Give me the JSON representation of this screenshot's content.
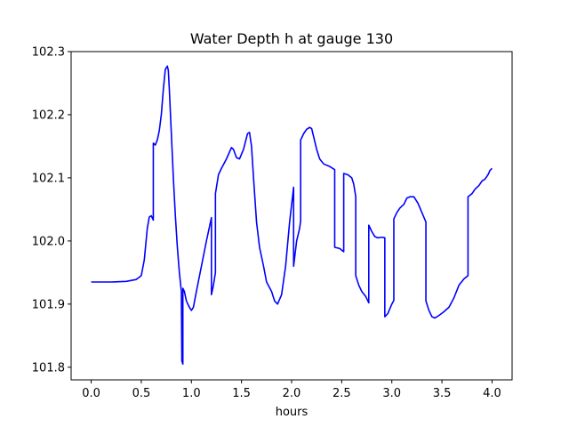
{
  "chart_data": {
    "type": "line",
    "title": "Water Depth h at gauge 130",
    "xlabel": "hours",
    "ylabel": "",
    "xlim": [
      -0.2,
      4.2
    ],
    "ylim": [
      101.78,
      102.3
    ],
    "xticks": [
      0.0,
      0.5,
      1.0,
      1.5,
      2.0,
      2.5,
      3.0,
      3.5,
      4.0
    ],
    "xtick_labels": [
      "0.0",
      "0.5",
      "1.0",
      "1.5",
      "2.0",
      "2.5",
      "3.0",
      "3.5",
      "4.0"
    ],
    "yticks": [
      101.8,
      101.9,
      102.0,
      102.1,
      102.2,
      102.3
    ],
    "ytick_labels": [
      "101.8",
      "101.9",
      "102.0",
      "102.1",
      "102.2",
      "102.3"
    ],
    "grid": false,
    "series": [
      {
        "color": "#0000ff",
        "points": [
          [
            0.0,
            101.935
          ],
          [
            0.2,
            101.935
          ],
          [
            0.35,
            101.936
          ],
          [
            0.45,
            101.939
          ],
          [
            0.5,
            101.945
          ],
          [
            0.53,
            101.97
          ],
          [
            0.56,
            102.02
          ],
          [
            0.58,
            102.038
          ],
          [
            0.6,
            102.04
          ],
          [
            0.62,
            102.033
          ],
          [
            0.62,
            102.155
          ],
          [
            0.64,
            102.152
          ],
          [
            0.66,
            102.16
          ],
          [
            0.68,
            102.175
          ],
          [
            0.7,
            102.2
          ],
          [
            0.72,
            102.24
          ],
          [
            0.74,
            102.272
          ],
          [
            0.76,
            102.277
          ],
          [
            0.77,
            102.27
          ],
          [
            0.78,
            102.24
          ],
          [
            0.8,
            102.17
          ],
          [
            0.82,
            102.1
          ],
          [
            0.84,
            102.04
          ],
          [
            0.86,
            101.99
          ],
          [
            0.88,
            101.95
          ],
          [
            0.9,
            101.92
          ],
          [
            0.905,
            101.81
          ],
          [
            0.915,
            101.805
          ],
          [
            0.915,
            101.925
          ],
          [
            0.93,
            101.92
          ],
          [
            0.95,
            101.905
          ],
          [
            0.98,
            101.895
          ],
          [
            1.0,
            101.89
          ],
          [
            1.02,
            101.895
          ],
          [
            1.05,
            101.92
          ],
          [
            1.1,
            101.96
          ],
          [
            1.15,
            102.0
          ],
          [
            1.2,
            102.037
          ],
          [
            1.2,
            101.915
          ],
          [
            1.22,
            101.93
          ],
          [
            1.24,
            101.95
          ],
          [
            1.24,
            102.075
          ],
          [
            1.27,
            102.105
          ],
          [
            1.3,
            102.115
          ],
          [
            1.35,
            102.13
          ],
          [
            1.4,
            102.148
          ],
          [
            1.42,
            102.145
          ],
          [
            1.45,
            102.132
          ],
          [
            1.48,
            102.13
          ],
          [
            1.52,
            102.145
          ],
          [
            1.56,
            102.17
          ],
          [
            1.58,
            102.172
          ],
          [
            1.6,
            102.15
          ],
          [
            1.62,
            102.1
          ],
          [
            1.65,
            102.03
          ],
          [
            1.68,
            101.99
          ],
          [
            1.72,
            101.96
          ],
          [
            1.75,
            101.935
          ],
          [
            1.8,
            101.92
          ],
          [
            1.83,
            101.905
          ],
          [
            1.86,
            101.9
          ],
          [
            1.9,
            101.915
          ],
          [
            1.94,
            101.96
          ],
          [
            1.98,
            102.03
          ],
          [
            2.02,
            102.085
          ],
          [
            2.02,
            101.96
          ],
          [
            2.05,
            102.0
          ],
          [
            2.08,
            102.02
          ],
          [
            2.09,
            102.032
          ],
          [
            2.09,
            102.16
          ],
          [
            2.12,
            102.17
          ],
          [
            2.15,
            102.177
          ],
          [
            2.18,
            102.18
          ],
          [
            2.2,
            102.178
          ],
          [
            2.22,
            102.165
          ],
          [
            2.25,
            102.145
          ],
          [
            2.28,
            102.13
          ],
          [
            2.32,
            102.122
          ],
          [
            2.38,
            102.118
          ],
          [
            2.43,
            102.113
          ],
          [
            2.43,
            101.99
          ],
          [
            2.48,
            101.988
          ],
          [
            2.52,
            101.983
          ],
          [
            2.52,
            102.107
          ],
          [
            2.56,
            102.105
          ],
          [
            2.6,
            102.1
          ],
          [
            2.62,
            102.09
          ],
          [
            2.64,
            102.07
          ],
          [
            2.64,
            101.945
          ],
          [
            2.67,
            101.93
          ],
          [
            2.7,
            101.92
          ],
          [
            2.74,
            101.912
          ],
          [
            2.77,
            101.902
          ],
          [
            2.77,
            102.025
          ],
          [
            2.8,
            102.015
          ],
          [
            2.83,
            102.007
          ],
          [
            2.86,
            102.005
          ],
          [
            2.9,
            102.006
          ],
          [
            2.93,
            102.005
          ],
          [
            2.93,
            101.88
          ],
          [
            2.96,
            101.885
          ],
          [
            3.0,
            101.9
          ],
          [
            3.02,
            101.906
          ],
          [
            3.02,
            102.035
          ],
          [
            3.05,
            102.045
          ],
          [
            3.08,
            102.052
          ],
          [
            3.12,
            102.058
          ],
          [
            3.15,
            102.068
          ],
          [
            3.18,
            102.07
          ],
          [
            3.22,
            102.07
          ],
          [
            3.26,
            102.06
          ],
          [
            3.3,
            102.045
          ],
          [
            3.34,
            102.03
          ],
          [
            3.34,
            101.905
          ],
          [
            3.37,
            101.89
          ],
          [
            3.4,
            101.88
          ],
          [
            3.43,
            101.878
          ],
          [
            3.47,
            101.882
          ],
          [
            3.52,
            101.888
          ],
          [
            3.57,
            101.895
          ],
          [
            3.62,
            101.91
          ],
          [
            3.67,
            101.93
          ],
          [
            3.72,
            101.94
          ],
          [
            3.76,
            101.945
          ],
          [
            3.76,
            102.07
          ],
          [
            3.8,
            102.075
          ],
          [
            3.83,
            102.082
          ],
          [
            3.87,
            102.088
          ],
          [
            3.9,
            102.095
          ],
          [
            3.93,
            102.098
          ],
          [
            3.96,
            102.105
          ],
          [
            3.98,
            102.112
          ],
          [
            4.0,
            102.115
          ]
        ]
      }
    ]
  }
}
